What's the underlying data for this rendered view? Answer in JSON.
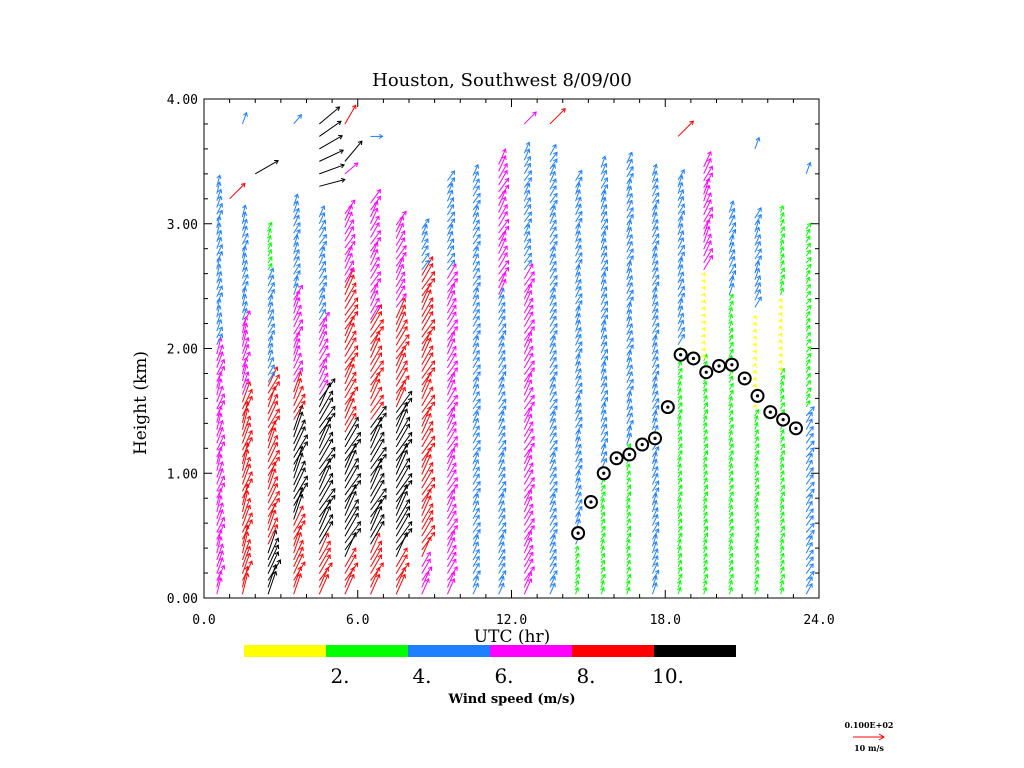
{
  "chart_data": {
    "type": "wind-profiler",
    "title": "Houston, Southwest   8/09/00",
    "xlabel": "UTC (hr)",
    "ylabel": "Height (km)",
    "xlim": [
      0,
      24
    ],
    "ylim": [
      0,
      4
    ],
    "x_ticks": [
      "0.0",
      "6.0",
      "12.0",
      "18.0",
      "24.0"
    ],
    "y_ticks": [
      "0.00",
      "1.00",
      "2.00",
      "3.00",
      "4.00"
    ],
    "colorbar": {
      "title": "Wind speed (m/s)",
      "tick_labels": [
        "2.",
        "4.",
        "6.",
        "8.",
        "10."
      ],
      "bins": [
        {
          "min": 0,
          "max": 2,
          "color": "#ffff00"
        },
        {
          "min": 2,
          "max": 4,
          "color": "#00ff00"
        },
        {
          "min": 4,
          "max": 6,
          "color": "#1e7fff"
        },
        {
          "min": 6,
          "max": 8,
          "color": "#ff00ff"
        },
        {
          "min": 8,
          "max": 10,
          "color": "#ff0000"
        },
        {
          "min": 10,
          "max": 12,
          "color": "#000000"
        }
      ]
    },
    "reference_vector": {
      "label_top": "0.100E+02",
      "label_bottom": "10 m/s",
      "color": "#ff0000"
    },
    "mixing_height": {
      "x": [
        14.6,
        15.1,
        15.6,
        16.1,
        16.6,
        17.1,
        17.6,
        18.1,
        18.6,
        19.1,
        19.6,
        20.1,
        20.6,
        21.1,
        21.6,
        22.1,
        22.6,
        23.1
      ],
      "y": [
        0.52,
        0.77,
        1.0,
        1.12,
        1.15,
        1.23,
        1.28,
        1.53,
        1.95,
        1.92,
        1.81,
        1.86,
        1.87,
        1.76,
        1.62,
        1.49,
        1.43,
        1.36
      ]
    },
    "profiles": [
      {
        "x": 0.5,
        "top": 3.3,
        "segments": [
          [
            0,
            2.0,
            7
          ],
          [
            2.0,
            3.3,
            5
          ]
        ],
        "dir": 200
      },
      {
        "x": 1.5,
        "top": 3.1,
        "segments": [
          [
            0,
            1.6,
            9
          ],
          [
            1.6,
            2.2,
            7
          ],
          [
            2.2,
            3.1,
            5
          ]
        ],
        "dir": 200
      },
      {
        "x": 2.5,
        "top": 3.0,
        "segments": [
          [
            0,
            0.4,
            10
          ],
          [
            0.4,
            1.7,
            9
          ],
          [
            1.7,
            2.6,
            5
          ],
          [
            2.6,
            3.0,
            3
          ]
        ],
        "dir": 205
      },
      {
        "x": 3.5,
        "top": 3.2,
        "segments": [
          [
            0,
            0.6,
            9
          ],
          [
            0.6,
            1.4,
            11
          ],
          [
            1.4,
            1.7,
            9
          ],
          [
            1.7,
            2.4,
            7
          ],
          [
            2.4,
            3.2,
            5
          ]
        ],
        "dir": 205
      },
      {
        "x": 4.5,
        "top": 3.1,
        "segments": [
          [
            0,
            0.4,
            9
          ],
          [
            0.4,
            1.6,
            11
          ],
          [
            1.6,
            2.2,
            7
          ],
          [
            2.2,
            3.1,
            5
          ]
        ],
        "dir": 210
      },
      {
        "x": 5.5,
        "top": 3.1,
        "segments": [
          [
            0,
            0.3,
            9
          ],
          [
            0.3,
            1.3,
            11
          ],
          [
            1.3,
            2.5,
            9
          ],
          [
            2.5,
            3.1,
            7
          ]
        ],
        "dir": 210
      },
      {
        "x": 6.5,
        "top": 3.2,
        "segments": [
          [
            0,
            0.4,
            9
          ],
          [
            0.4,
            1.4,
            11
          ],
          [
            1.4,
            2.2,
            9
          ],
          [
            2.2,
            3.2,
            7
          ]
        ],
        "dir": 210
      },
      {
        "x": 7.5,
        "top": 3.0,
        "segments": [
          [
            0,
            0.3,
            9
          ],
          [
            0.3,
            1.5,
            11
          ],
          [
            1.5,
            2.3,
            9
          ],
          [
            2.3,
            3.0,
            7
          ]
        ],
        "dir": 210
      },
      {
        "x": 8.5,
        "top": 3.0,
        "segments": [
          [
            0,
            0.3,
            7
          ],
          [
            0.3,
            2.6,
            9
          ],
          [
            2.6,
            3.0,
            5
          ]
        ],
        "dir": 210
      },
      {
        "x": 9.5,
        "top": 3.4,
        "segments": [
          [
            0,
            2.6,
            7
          ],
          [
            2.6,
            3.4,
            5
          ]
        ],
        "dir": 210
      },
      {
        "x": 10.5,
        "top": 3.4,
        "segments": [
          [
            0,
            3.4,
            5
          ]
        ],
        "dir": 210
      },
      {
        "x": 11.5,
        "top": 3.5,
        "segments": [
          [
            0,
            2.4,
            5
          ],
          [
            2.4,
            3.5,
            7
          ]
        ],
        "dir": 210
      },
      {
        "x": 12.5,
        "top": 3.6,
        "segments": [
          [
            0,
            2.6,
            7
          ],
          [
            2.6,
            3.6,
            5
          ]
        ],
        "dir": 210
      },
      {
        "x": 13.5,
        "top": 3.6,
        "segments": [
          [
            0,
            3.6,
            5
          ]
        ],
        "dir": 210
      },
      {
        "x": 14.5,
        "top": 3.4,
        "segments": [
          [
            0,
            0.4,
            3
          ],
          [
            0.4,
            3.4,
            5
          ]
        ],
        "dir": 205
      },
      {
        "x": 15.5,
        "top": 3.5,
        "segments": [
          [
            0,
            1.0,
            3
          ],
          [
            1.0,
            3.5,
            5
          ]
        ],
        "dir": 205
      },
      {
        "x": 16.5,
        "top": 3.5,
        "segments": [
          [
            0,
            1.2,
            3
          ],
          [
            1.2,
            3.5,
            5
          ]
        ],
        "dir": 205
      },
      {
        "x": 17.5,
        "top": 3.4,
        "segments": [
          [
            0,
            3.4,
            5
          ]
        ],
        "dir": 205
      },
      {
        "x": 18.5,
        "top": 3.4,
        "segments": [
          [
            0,
            2.0,
            3
          ],
          [
            2.0,
            3.4,
            5
          ]
        ],
        "dir": 205
      },
      {
        "x": 19.5,
        "top": 3.5,
        "segments": [
          [
            0,
            1.9,
            3
          ],
          [
            1.9,
            2.6,
            1
          ],
          [
            2.6,
            3.5,
            7
          ]
        ],
        "dir": 205
      },
      {
        "x": 20.5,
        "top": 3.1,
        "segments": [
          [
            0,
            1.2,
            3
          ],
          [
            1.2,
            2.4,
            3
          ],
          [
            2.4,
            3.1,
            5
          ]
        ],
        "dir": 205
      },
      {
        "x": 21.5,
        "top": 3.1,
        "segments": [
          [
            0,
            1.5,
            3
          ],
          [
            1.5,
            2.3,
            1
          ],
          [
            2.3,
            3.1,
            5
          ]
        ],
        "dir": 205
      },
      {
        "x": 22.5,
        "top": 3.1,
        "segments": [
          [
            0,
            1.8,
            3
          ],
          [
            1.8,
            2.4,
            1
          ],
          [
            2.4,
            3.1,
            3
          ]
        ],
        "dir": 205
      },
      {
        "x": 23.5,
        "top": 3.0,
        "segments": [
          [
            0,
            1.5,
            5
          ],
          [
            1.5,
            3.0,
            3
          ]
        ],
        "dir": 215
      }
    ],
    "upper_vectors": [
      {
        "x": 1.5,
        "y": 3.8,
        "speed": 5,
        "dir": 200
      },
      {
        "x": 3.5,
        "y": 3.8,
        "speed": 5,
        "dir": 220
      },
      {
        "x": 4.5,
        "y": 3.8,
        "speed": 11,
        "dir": 230
      },
      {
        "x": 4.5,
        "y": 3.7,
        "speed": 11,
        "dir": 235
      },
      {
        "x": 4.5,
        "y": 3.6,
        "speed": 11,
        "dir": 240
      },
      {
        "x": 4.5,
        "y": 3.5,
        "speed": 11,
        "dir": 245
      },
      {
        "x": 4.5,
        "y": 3.4,
        "speed": 11,
        "dir": 250
      },
      {
        "x": 4.5,
        "y": 3.3,
        "speed": 11,
        "dir": 255
      },
      {
        "x": 5.5,
        "y": 3.8,
        "speed": 9,
        "dir": 210
      },
      {
        "x": 5.5,
        "y": 3.5,
        "speed": 11,
        "dir": 220
      },
      {
        "x": 5.5,
        "y": 3.4,
        "speed": 7,
        "dir": 230
      },
      {
        "x": 6.5,
        "y": 3.7,
        "speed": 5,
        "dir": 270
      },
      {
        "x": 2.0,
        "y": 3.4,
        "speed": 11,
        "dir": 240
      },
      {
        "x": 1.0,
        "y": 3.2,
        "speed": 9,
        "dir": 225
      },
      {
        "x": 12.5,
        "y": 3.8,
        "speed": 7,
        "dir": 225
      },
      {
        "x": 13.5,
        "y": 3.8,
        "speed": 9,
        "dir": 225
      },
      {
        "x": 18.5,
        "y": 3.7,
        "speed": 9,
        "dir": 225
      },
      {
        "x": 21.5,
        "y": 3.6,
        "speed": 5,
        "dir": 200
      },
      {
        "x": 23.5,
        "y": 3.4,
        "speed": 5,
        "dir": 200
      }
    ]
  }
}
